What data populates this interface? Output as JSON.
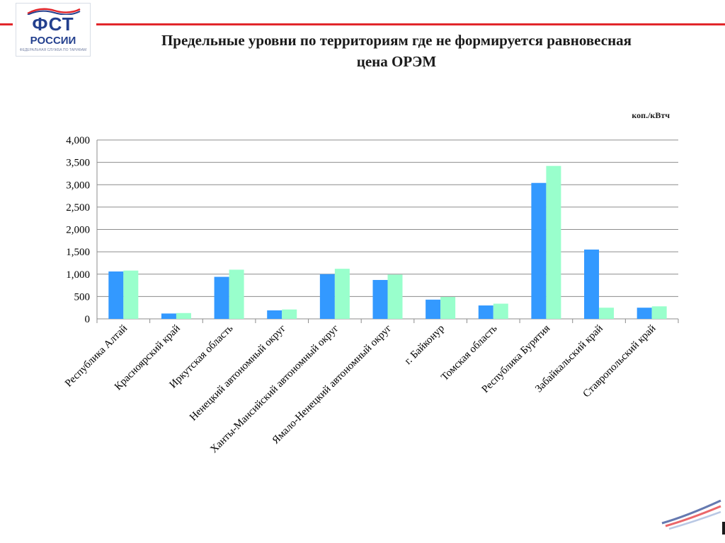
{
  "logo": {
    "line1": "ФСТ",
    "line2": "РОССИИ",
    "line3": "ФЕДЕРАЛЬНАЯ СЛУЖБА ПО ТАРИФАМ"
  },
  "header": {
    "title_line1": "Предельные уровни по территориям где не формируется равновесная",
    "title_line2": "цена ОРЭМ",
    "unit": "коп./кВтч"
  },
  "colors": {
    "series1": "#3399ff",
    "series2": "#99ffcc",
    "accent": "#e2262b",
    "brand": "#23408e"
  },
  "chart_data": {
    "type": "bar",
    "categories": [
      "Республика Алтай",
      "Красноярский край",
      "Иркутская область",
      "Ненецкий автономный округ",
      "Ханты-Мансийский автономный округ",
      "Ямало-Ненецкий автономный округ",
      "г. Байконур",
      "Томская область",
      "Республика Бурятия",
      "Забайкальский край",
      "Ставропольский край"
    ],
    "series": [
      {
        "values": [
          1060,
          120,
          940,
          190,
          1000,
          870,
          430,
          300,
          3040,
          1550,
          250
        ]
      },
      {
        "values": [
          1080,
          130,
          1100,
          210,
          1120,
          990,
          490,
          340,
          3420,
          250,
          280
        ]
      }
    ],
    "title": "Предельные уровни по территориям где не формируется равновесная цена ОРЭМ",
    "xlabel": "",
    "ylabel": "",
    "unit": "коп./кВтч",
    "ylim": [
      0,
      4000
    ],
    "yticks": [
      "0",
      "500",
      "1,000",
      "1,500",
      "2,000",
      "2,500",
      "3,000",
      "3,500",
      "4,000"
    ],
    "grid": true,
    "legend": "none"
  }
}
